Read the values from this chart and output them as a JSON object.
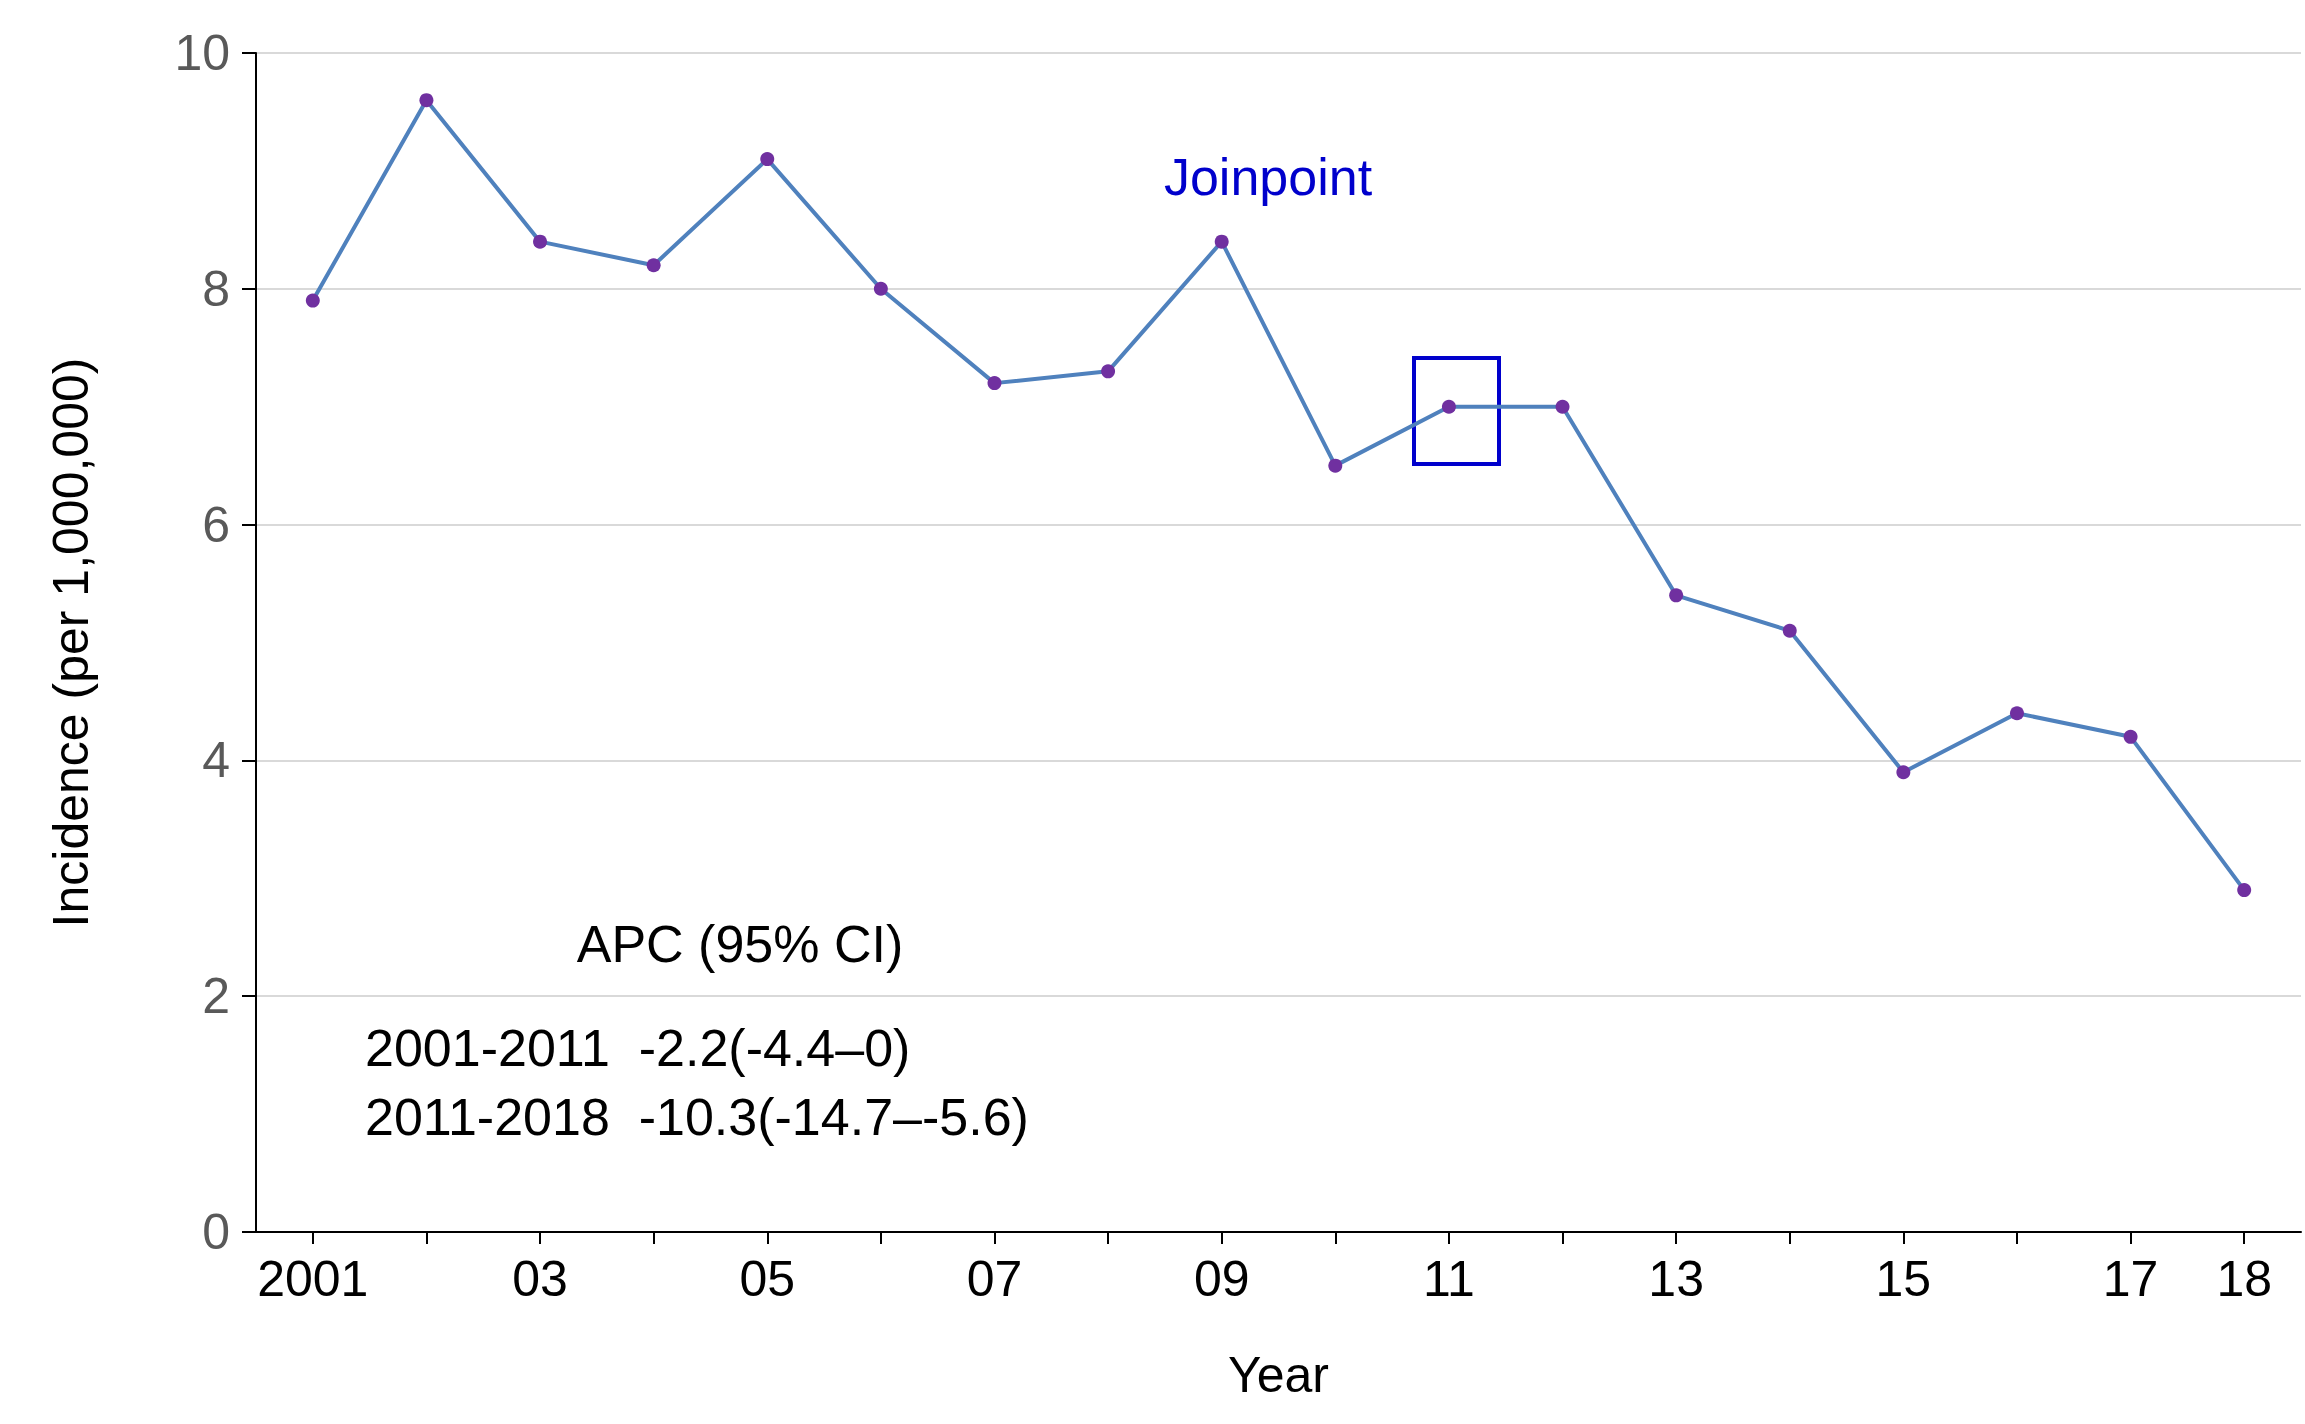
{
  "chart_data": {
    "type": "line",
    "xlabel": "Year",
    "ylabel": "Incidence (per 1,000,000)",
    "categories": [
      "2001",
      null,
      "03",
      null,
      "05",
      null,
      "07",
      null,
      "09",
      null,
      "11",
      null,
      "13",
      null,
      "15",
      null,
      "17",
      "18"
    ],
    "series": [
      {
        "color": "#4f81bd",
        "values": [
          7.9,
          9.6,
          8.4,
          8.2,
          9.1,
          8.0,
          7.2,
          7.3,
          8.4,
          6.5,
          7.0,
          7.0,
          5.4,
          5.1,
          3.9,
          4.4,
          4.2,
          2.9
        ]
      }
    ],
    "ylim": [
      0,
      10
    ],
    "yticks": [
      0,
      2,
      4,
      6,
      8,
      10
    ],
    "grid": "y",
    "marker": "circle",
    "line_style": "solid",
    "annotations": [
      "Joinpoint",
      "APC (95% CI)",
      "2001-2011  -2.2(-4.4–0)",
      "2011-2018  -10.3(-14.7–-5.6)"
    ]
  }
}
